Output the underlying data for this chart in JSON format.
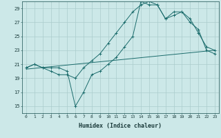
{
  "xlabel": "Humidex (Indice chaleur)",
  "background_color": "#cce8e8",
  "grid_color": "#aacccc",
  "line_color": "#1a6b6b",
  "xlim": [
    -0.5,
    23.5
  ],
  "ylim": [
    14,
    30
  ],
  "xticks": [
    0,
    1,
    2,
    3,
    4,
    5,
    6,
    7,
    8,
    9,
    10,
    11,
    12,
    13,
    14,
    15,
    16,
    17,
    18,
    19,
    20,
    21,
    22,
    23
  ],
  "yticks": [
    15,
    17,
    19,
    21,
    23,
    25,
    27,
    29
  ],
  "line1_x": [
    0,
    1,
    2,
    3,
    4,
    5,
    6,
    7,
    8,
    9,
    10,
    11,
    12,
    13,
    14,
    15,
    16,
    17,
    18,
    19,
    20,
    21,
    22,
    23
  ],
  "line1_y": [
    20.5,
    21.0,
    20.5,
    20.0,
    19.5,
    19.5,
    19.0,
    20.5,
    21.5,
    22.5,
    24.0,
    25.5,
    27.0,
    28.5,
    29.5,
    30.0,
    29.5,
    27.5,
    28.5,
    28.5,
    27.0,
    26.0,
    23.0,
    22.5
  ],
  "line2_x": [
    0,
    1,
    2,
    3,
    4,
    5,
    6,
    7,
    8,
    9,
    10,
    11,
    12,
    13,
    14,
    15,
    16,
    17,
    18,
    19,
    20,
    21,
    22,
    23
  ],
  "line2_y": [
    20.5,
    21.0,
    20.5,
    20.5,
    20.5,
    20.0,
    15.0,
    17.0,
    19.5,
    20.0,
    21.0,
    22.0,
    23.5,
    25.0,
    30.0,
    29.5,
    29.5,
    27.5,
    28.0,
    28.5,
    27.5,
    25.5,
    23.5,
    23.0
  ],
  "line3_x": [
    0,
    23
  ],
  "line3_y": [
    20.3,
    23.0
  ],
  "markersize": 2.5
}
